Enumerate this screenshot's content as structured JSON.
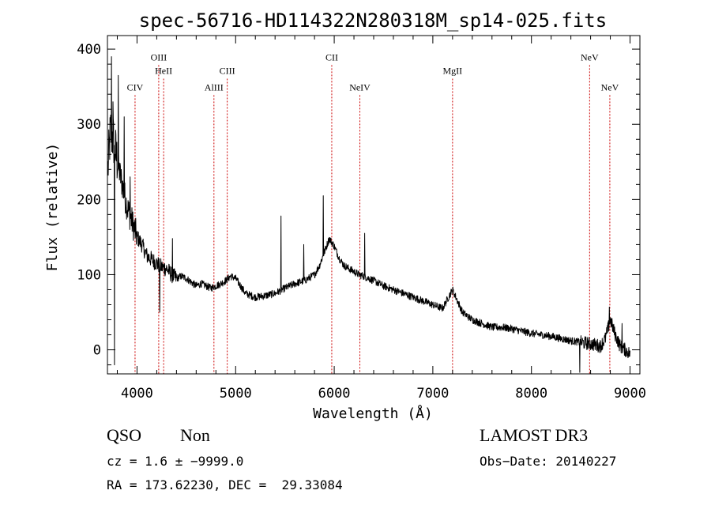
{
  "chart_data": {
    "type": "line",
    "title": "spec-56716-HD114322N280318M_sp14-025.fits",
    "xlabel": "Wavelength (Å)",
    "ylabel": "Flux (relative)",
    "xlim": [
      3700,
      9100
    ],
    "ylim": [
      -32,
      418
    ],
    "x_ticks": [
      4000,
      5000,
      6000,
      7000,
      8000,
      9000
    ],
    "x_tick_labels": [
      "4000",
      "5000",
      "6000",
      "7000",
      "8000",
      "9000"
    ],
    "y_ticks": [
      0,
      100,
      200,
      300,
      400
    ],
    "y_tick_labels": [
      "0",
      "100",
      "200",
      "300",
      "400"
    ],
    "grid": false,
    "line_color": "#000000",
    "marker_color": "#cc0000",
    "spectrum_anchors": {
      "x": [
        3705,
        3730,
        3760,
        3800,
        3850,
        3900,
        3950,
        4000,
        4050,
        4100,
        4150,
        4200,
        4250,
        4300,
        4350,
        4400,
        4450,
        4500,
        4550,
        4600,
        4650,
        4700,
        4750,
        4800,
        4850,
        4900,
        4950,
        5000,
        5050,
        5100,
        5200,
        5300,
        5400,
        5500,
        5600,
        5700,
        5800,
        5850,
        5900,
        5950,
        6000,
        6050,
        6100,
        6150,
        6200,
        6250,
        6300,
        6350,
        6400,
        6500,
        6600,
        6700,
        6800,
        6900,
        7000,
        7100,
        7150,
        7200,
        7250,
        7300,
        7400,
        7500,
        7600,
        7700,
        7800,
        7900,
        8000,
        8100,
        8200,
        8300,
        8400,
        8500,
        8600,
        8700,
        8750,
        8800,
        8850,
        8900,
        8950,
        9000
      ],
      "y": [
        240,
        290,
        280,
        250,
        220,
        190,
        170,
        150,
        140,
        125,
        120,
        115,
        110,
        108,
        100,
        95,
        98,
        95,
        90,
        85,
        88,
        85,
        82,
        85,
        88,
        92,
        98,
        95,
        85,
        75,
        70,
        72,
        75,
        82,
        88,
        92,
        100,
        112,
        130,
        148,
        138,
        122,
        112,
        108,
        104,
        100,
        98,
        95,
        92,
        85,
        80,
        75,
        70,
        65,
        60,
        55,
        68,
        80,
        65,
        50,
        40,
        35,
        30,
        30,
        28,
        25,
        22,
        20,
        18,
        15,
        12,
        10,
        8,
        5,
        15,
        40,
        20,
        5,
        0,
        -5
      ]
    },
    "spikes": [
      {
        "x": 3740,
        "y": 390
      },
      {
        "x": 3755,
        "y": 330
      },
      {
        "x": 3770,
        "y": -20
      },
      {
        "x": 3810,
        "y": 365
      },
      {
        "x": 3870,
        "y": 310
      },
      {
        "x": 3930,
        "y": 230
      },
      {
        "x": 4230,
        "y": 50
      },
      {
        "x": 4360,
        "y": 148
      },
      {
        "x": 5460,
        "y": 178
      },
      {
        "x": 5690,
        "y": 140
      },
      {
        "x": 5890,
        "y": 205
      },
      {
        "x": 6310,
        "y": 155
      },
      {
        "x": 8490,
        "y": -30
      },
      {
        "x": 8790,
        "y": 57
      },
      {
        "x": 8920,
        "y": 35
      }
    ],
    "emission_lines": [
      {
        "label": "CIV",
        "x": 3980,
        "label_y": 345
      },
      {
        "label": "OIII",
        "x": 4220,
        "label_y": 385
      },
      {
        "label": "HeII",
        "x": 4270,
        "label_y": 367
      },
      {
        "label": "AlIII",
        "x": 4780,
        "label_y": 345
      },
      {
        "label": "CIII",
        "x": 4915,
        "label_y": 367
      },
      {
        "label": "CII",
        "x": 5975,
        "label_y": 385
      },
      {
        "label": "NeIV",
        "x": 6260,
        "label_y": 345
      },
      {
        "label": "MgII",
        "x": 7200,
        "label_y": 367
      },
      {
        "label": "NeV",
        "x": 8590,
        "label_y": 385
      },
      {
        "label": "NeV",
        "x": 8795,
        "label_y": 345
      }
    ]
  },
  "info": {
    "class": "QSO",
    "subclass": "Non",
    "cz": "cz = 1.6 ± −9999.0",
    "radec": "RA = 173.62230, DEC =  29.33084",
    "survey": "LAMOST DR3",
    "obs_date": "Obs−Date: 20140227"
  }
}
